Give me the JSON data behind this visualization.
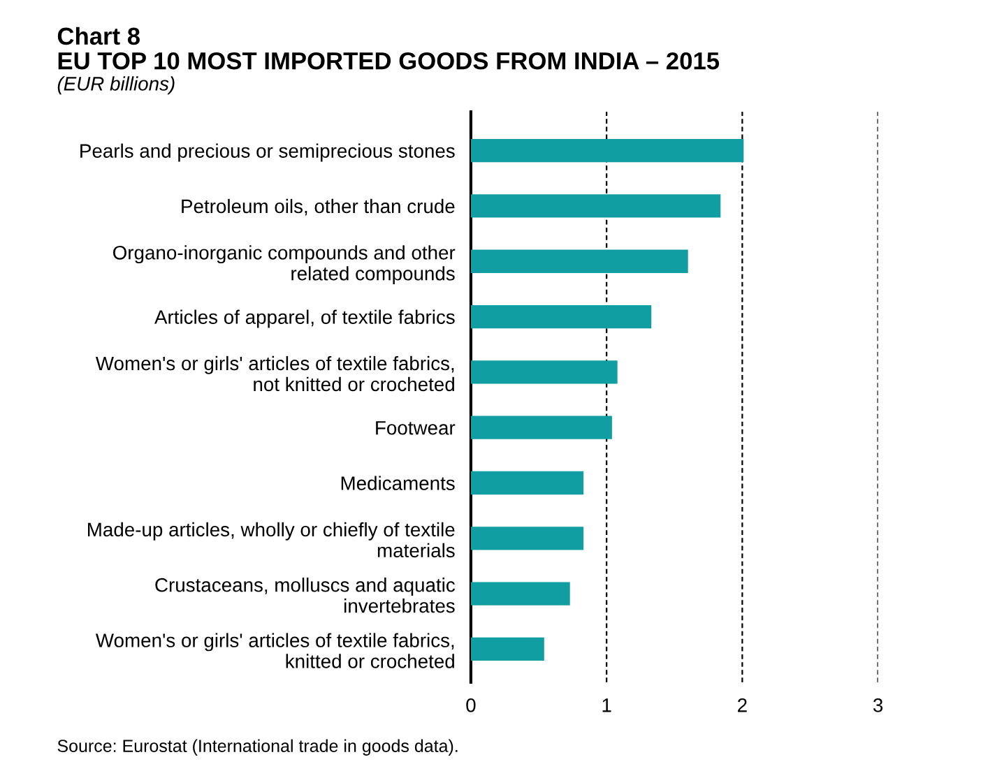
{
  "chart_data": {
    "type": "bar",
    "orientation": "horizontal",
    "title": "Chart 8\nEU TOP 10 MOST IMPORTED GOODS FROM INDIA – 2015",
    "subtitle": "(EUR billions)",
    "categories": [
      "Pearls and precious or semiprecious stones",
      "Petroleum oils, other than crude",
      "Organo-inorganic compounds and other\nrelated compounds",
      "Articles of apparel, of textile fabrics",
      "Women's or girls' articles of textile fabrics,\nnot knitted or crocheted",
      "Footwear",
      "Medicaments",
      "Made-up articles, wholly or chiefly of textile\nmaterials",
      "Crustaceans, molluscs and aquatic\ninvertebrates",
      "Women's or girls' articles of textile fabrics,\nknitted or crocheted"
    ],
    "values": [
      2.01,
      1.84,
      1.6,
      1.33,
      1.08,
      1.04,
      0.83,
      0.83,
      0.73,
      0.54
    ],
    "color": "#109ea3",
    "xlim": [
      0,
      3
    ],
    "xticks": [
      0,
      1,
      2,
      3
    ],
    "grid": "x",
    "line_style": "dashed",
    "annotations": [
      "Source: Eurostat (International trade in goods data)."
    ]
  }
}
